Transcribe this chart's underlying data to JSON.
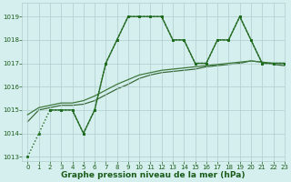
{
  "lines": [
    {
      "label": "line1_dotted",
      "x": [
        0,
        1,
        2,
        3,
        4,
        5,
        6,
        7,
        8,
        9,
        10,
        11,
        12,
        13,
        14,
        15,
        16,
        17,
        18,
        19,
        20,
        21,
        22,
        23
      ],
      "y": [
        1013,
        1014,
        1015,
        1015,
        1015,
        1014,
        1015,
        1017,
        1018,
        1019,
        1019,
        1019,
        1019,
        1018,
        1018,
        1017,
        1017,
        1018,
        1018,
        1019,
        1018,
        1017,
        1017,
        1017
      ],
      "color": "#1a6b1a",
      "linestyle": "dotted",
      "linewidth": 1.0,
      "marker": "s",
      "markersize": 2.0,
      "zorder": 4
    },
    {
      "label": "line2_solid_markers",
      "x": [
        2,
        3,
        4,
        5,
        6,
        7,
        8,
        9,
        10,
        11,
        12,
        13,
        14,
        15,
        16,
        17,
        18,
        19,
        20,
        21,
        22,
        23
      ],
      "y": [
        1015,
        1015,
        1015,
        1014,
        1015,
        1017,
        1018,
        1019,
        1019,
        1019,
        1019,
        1018,
        1018,
        1017,
        1017,
        1018,
        1018,
        1019,
        1018,
        1017,
        1017,
        1017
      ],
      "color": "#2e6e2e",
      "linestyle": "solid",
      "linewidth": 1.0,
      "marker": "s",
      "markersize": 2.0,
      "zorder": 3
    },
    {
      "label": "line3_trend1",
      "x": [
        0,
        1,
        2,
        3,
        4,
        5,
        6,
        7,
        8,
        9,
        10,
        11,
        12,
        13,
        14,
        15,
        16,
        17,
        18,
        19,
        20,
        21,
        22,
        23
      ],
      "y": [
        1014.8,
        1015.1,
        1015.2,
        1015.3,
        1015.3,
        1015.4,
        1015.6,
        1015.85,
        1016.1,
        1016.3,
        1016.5,
        1016.6,
        1016.7,
        1016.75,
        1016.8,
        1016.85,
        1016.9,
        1016.95,
        1017.0,
        1017.05,
        1017.1,
        1017.05,
        1017.0,
        1017.0
      ],
      "color": "#3d7a3d",
      "linestyle": "solid",
      "linewidth": 0.9,
      "marker": null,
      "markersize": 0,
      "zorder": 2
    },
    {
      "label": "line4_trend2",
      "x": [
        0,
        1,
        2,
        3,
        4,
        5,
        6,
        7,
        8,
        9,
        10,
        11,
        12,
        13,
        14,
        15,
        16,
        17,
        18,
        19,
        20,
        21,
        22,
        23
      ],
      "y": [
        1014.5,
        1015.0,
        1015.1,
        1015.2,
        1015.2,
        1015.25,
        1015.4,
        1015.65,
        1015.9,
        1016.1,
        1016.35,
        1016.5,
        1016.6,
        1016.65,
        1016.7,
        1016.75,
        1016.85,
        1016.9,
        1016.95,
        1017.0,
        1017.1,
        1017.05,
        1016.95,
        1016.9
      ],
      "color": "#336633",
      "linestyle": "solid",
      "linewidth": 0.85,
      "marker": null,
      "markersize": 0,
      "zorder": 1
    }
  ],
  "xlim": [
    -0.5,
    23
  ],
  "ylim": [
    1012.8,
    1019.6
  ],
  "yticks": [
    1013,
    1014,
    1015,
    1016,
    1017,
    1018,
    1019
  ],
  "xticks": [
    0,
    1,
    2,
    3,
    4,
    5,
    6,
    7,
    8,
    9,
    10,
    11,
    12,
    13,
    14,
    15,
    16,
    17,
    18,
    19,
    20,
    21,
    22,
    23
  ],
  "xlabel": "Graphe pression niveau de la mer (hPa)",
  "background_color": "#d5eeee",
  "grid_color": "#b0cccc",
  "tick_color": "#1a5c1a",
  "label_color": "#1a5c1a",
  "label_fontsize": 6.5,
  "tick_fontsize": 5.0
}
